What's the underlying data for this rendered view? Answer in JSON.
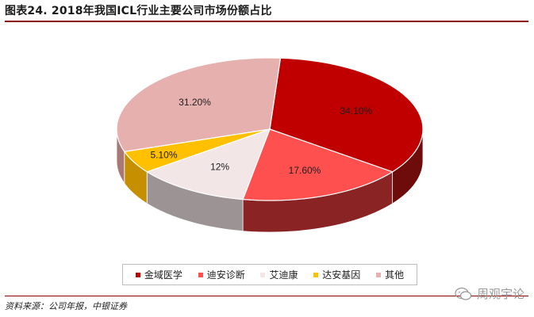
{
  "figure": {
    "title": "图表24. 2018年我国ICL行业主要公司市场份额占比",
    "source": "资料来源：公司年报，中银证券",
    "watermark": "周观宇论"
  },
  "colors": {
    "rule": "#8b0000"
  },
  "chart_data": {
    "type": "pie",
    "style": "3d",
    "legend_position": "bottom",
    "slices": [
      {
        "name": "金域医学",
        "value": 34.1,
        "label": "34.10%",
        "color": "#c00000",
        "side": "#6e0b0b"
      },
      {
        "name": "迪安诊断",
        "value": 17.6,
        "label": "17.60%",
        "color": "#ff5050",
        "side": "#8a2424"
      },
      {
        "name": "艾迪康",
        "value": 12.0,
        "label": "12%",
        "color": "#f2e6e6",
        "side": "#9c9494"
      },
      {
        "name": "达安基因",
        "value": 5.1,
        "label": "5.10%",
        "color": "#ffc000",
        "side": "#c58f00"
      },
      {
        "name": "其他",
        "value": 31.2,
        "label": "31.20%",
        "color": "#e6b0ae",
        "side": "#a97876"
      }
    ]
  }
}
